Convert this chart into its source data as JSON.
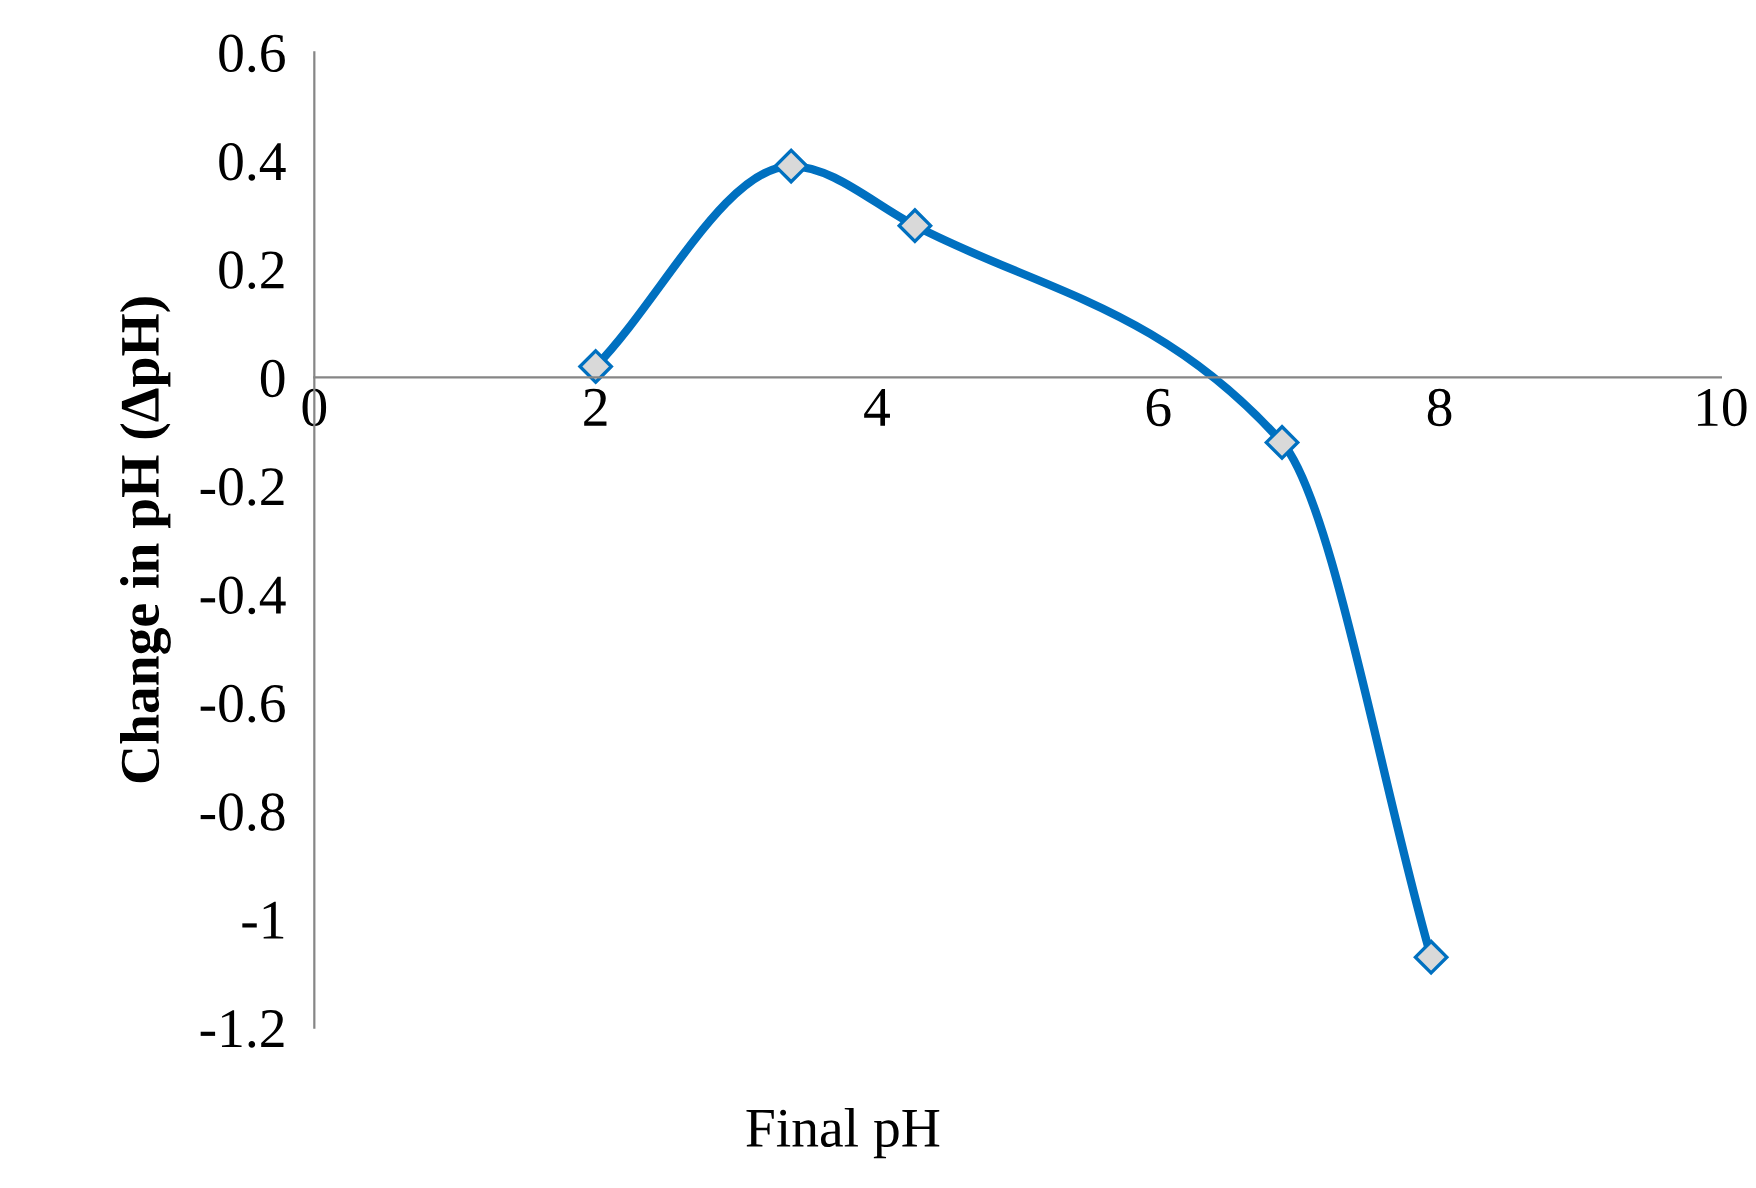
{
  "chart_data": {
    "type": "line",
    "xlabel": "Final pH",
    "ylabel": "Change in pH (ΔpH)",
    "series": [
      {
        "color": "#0070c0",
        "x": [
          2.0,
          3.39,
          4.27,
          6.88,
          7.94
        ],
        "values": [
          0.02,
          0.39,
          0.28,
          -0.12,
          -1.07
        ]
      }
    ],
    "xlim": [
      0,
      10
    ],
    "xticks": [
      0,
      2,
      4,
      6,
      8,
      10
    ],
    "ylim": [
      -1.2,
      0.6
    ],
    "yticks": [
      -1.2,
      -1,
      -0.8,
      -0.6,
      -0.4,
      -0.2,
      0,
      0.2,
      0.4,
      0.6
    ],
    "marker": "diamond",
    "line_style": "solid",
    "grid": false,
    "legend": false
  }
}
